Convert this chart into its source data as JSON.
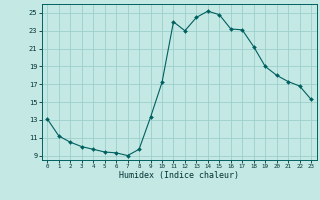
{
  "x": [
    0,
    1,
    2,
    3,
    4,
    5,
    6,
    7,
    8,
    9,
    10,
    11,
    12,
    13,
    14,
    15,
    16,
    17,
    18,
    19,
    20,
    21,
    22,
    23
  ],
  "y": [
    13.1,
    11.2,
    10.5,
    10.0,
    9.7,
    9.4,
    9.3,
    9.0,
    9.7,
    13.3,
    17.2,
    24.0,
    23.0,
    24.5,
    25.2,
    24.8,
    23.2,
    23.1,
    21.2,
    19.0,
    18.0,
    17.3,
    16.8,
    15.3
  ],
  "bg_color": "#c4e8e4",
  "grid_color": "#9dcfca",
  "line_color": "#006060",
  "marker_color": "#006060",
  "xlabel": "Humidex (Indice chaleur)",
  "ylim": [
    8.5,
    26.0
  ],
  "xlim": [
    -0.5,
    23.5
  ],
  "yticks": [
    9,
    11,
    13,
    15,
    17,
    19,
    21,
    23,
    25
  ],
  "xticks": [
    0,
    1,
    2,
    3,
    4,
    5,
    6,
    7,
    8,
    9,
    10,
    11,
    12,
    13,
    14,
    15,
    16,
    17,
    18,
    19,
    20,
    21,
    22,
    23
  ]
}
